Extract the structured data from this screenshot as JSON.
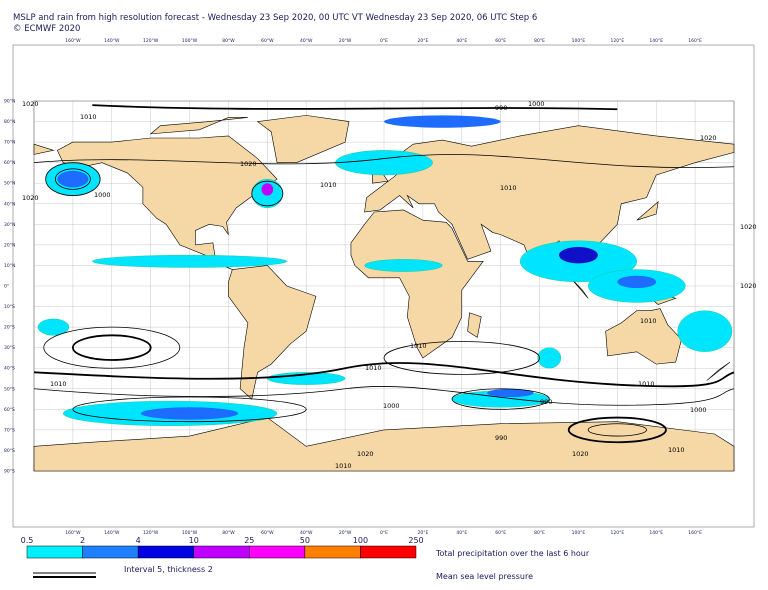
{
  "header": {
    "title": "MSLP and rain from high resolution forecast - Wednesday 23 Sep 2020, 00 UTC VT Wednesday 23 Sep 2020, 06 UTC Step 6",
    "copyright": "© ECMWF 2020"
  },
  "map": {
    "longitude_labels": [
      "160°W",
      "140°W",
      "120°W",
      "100°W",
      "80°W",
      "60°W",
      "40°W",
      "20°W",
      "0°E",
      "20°E",
      "40°E",
      "60°E",
      "80°E",
      "100°E",
      "120°E",
      "140°E",
      "160°E"
    ],
    "latitude_labels": [
      "90°N",
      "80°N",
      "70°N",
      "60°N",
      "50°N",
      "40°N",
      "30°N",
      "20°N",
      "10°N",
      "0°",
      "10°S",
      "20°S",
      "30°S",
      "40°S",
      "50°S",
      "60°S",
      "70°S",
      "80°S",
      "90°S"
    ],
    "isobar_labels": [
      "1020",
      "1010",
      "1020",
      "1000",
      "1010",
      "1020",
      "990",
      "1000",
      "1010",
      "1010",
      "1020",
      "1010",
      "1020",
      "1010",
      "1010",
      "1000",
      "990",
      "1010",
      "990",
      "1020",
      "1010",
      "1020",
      "1000",
      "1010",
      "1020"
    ]
  },
  "legend": {
    "precipitation": {
      "bounds": [
        "0.5",
        "2",
        "4",
        "10",
        "25",
        "50",
        "100",
        "250"
      ],
      "colors": [
        "#00f0ff",
        "#1e80ff",
        "#0000e0",
        "#c000ff",
        "#ff00ff",
        "#ff8000",
        "#ff0000"
      ],
      "label": "Total precipitation over the last 6 hour"
    },
    "pressure": {
      "label": "Mean sea level pressure",
      "note": "Interval 5, thickness 2"
    }
  }
}
